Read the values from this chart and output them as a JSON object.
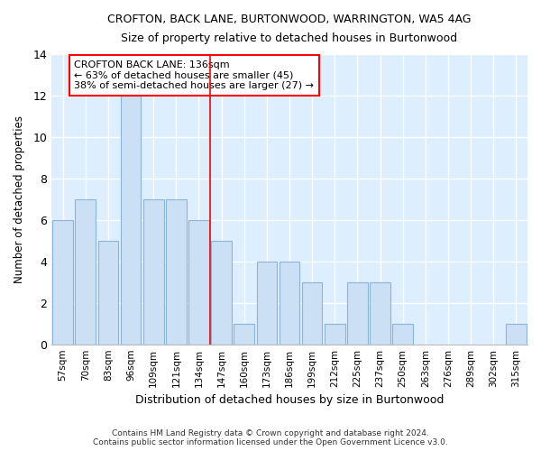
{
  "title1": "CROFTON, BACK LANE, BURTONWOOD, WARRINGTON, WA5 4AG",
  "title2": "Size of property relative to detached houses in Burtonwood",
  "xlabel": "Distribution of detached houses by size in Burtonwood",
  "ylabel": "Number of detached properties",
  "categories": [
    "57sqm",
    "70sqm",
    "83sqm",
    "96sqm",
    "109sqm",
    "121sqm",
    "134sqm",
    "147sqm",
    "160sqm",
    "173sqm",
    "186sqm",
    "199sqm",
    "212sqm",
    "225sqm",
    "237sqm",
    "250sqm",
    "263sqm",
    "276sqm",
    "289sqm",
    "302sqm",
    "315sqm"
  ],
  "values": [
    6,
    7,
    5,
    12,
    7,
    7,
    6,
    5,
    1,
    4,
    4,
    3,
    1,
    3,
    3,
    1,
    0,
    0,
    0,
    0,
    1
  ],
  "bar_color": "#cce0f5",
  "bar_edge_color": "#8ab4d8",
  "reference_line_index": 6.5,
  "reference_label": "CROFTON BACK LANE: 136sqm",
  "annotation_line1": "← 63% of detached houses are smaller (45)",
  "annotation_line2": "38% of semi-detached houses are larger (27) →",
  "ylim": [
    0,
    14
  ],
  "yticks": [
    0,
    2,
    4,
    6,
    8,
    10,
    12,
    14
  ],
  "plot_bg_color": "#ddeeff",
  "fig_bg_color": "#ffffff",
  "footer1": "Contains HM Land Registry data © Crown copyright and database right 2024.",
  "footer2": "Contains public sector information licensed under the Open Government Licence v3.0."
}
